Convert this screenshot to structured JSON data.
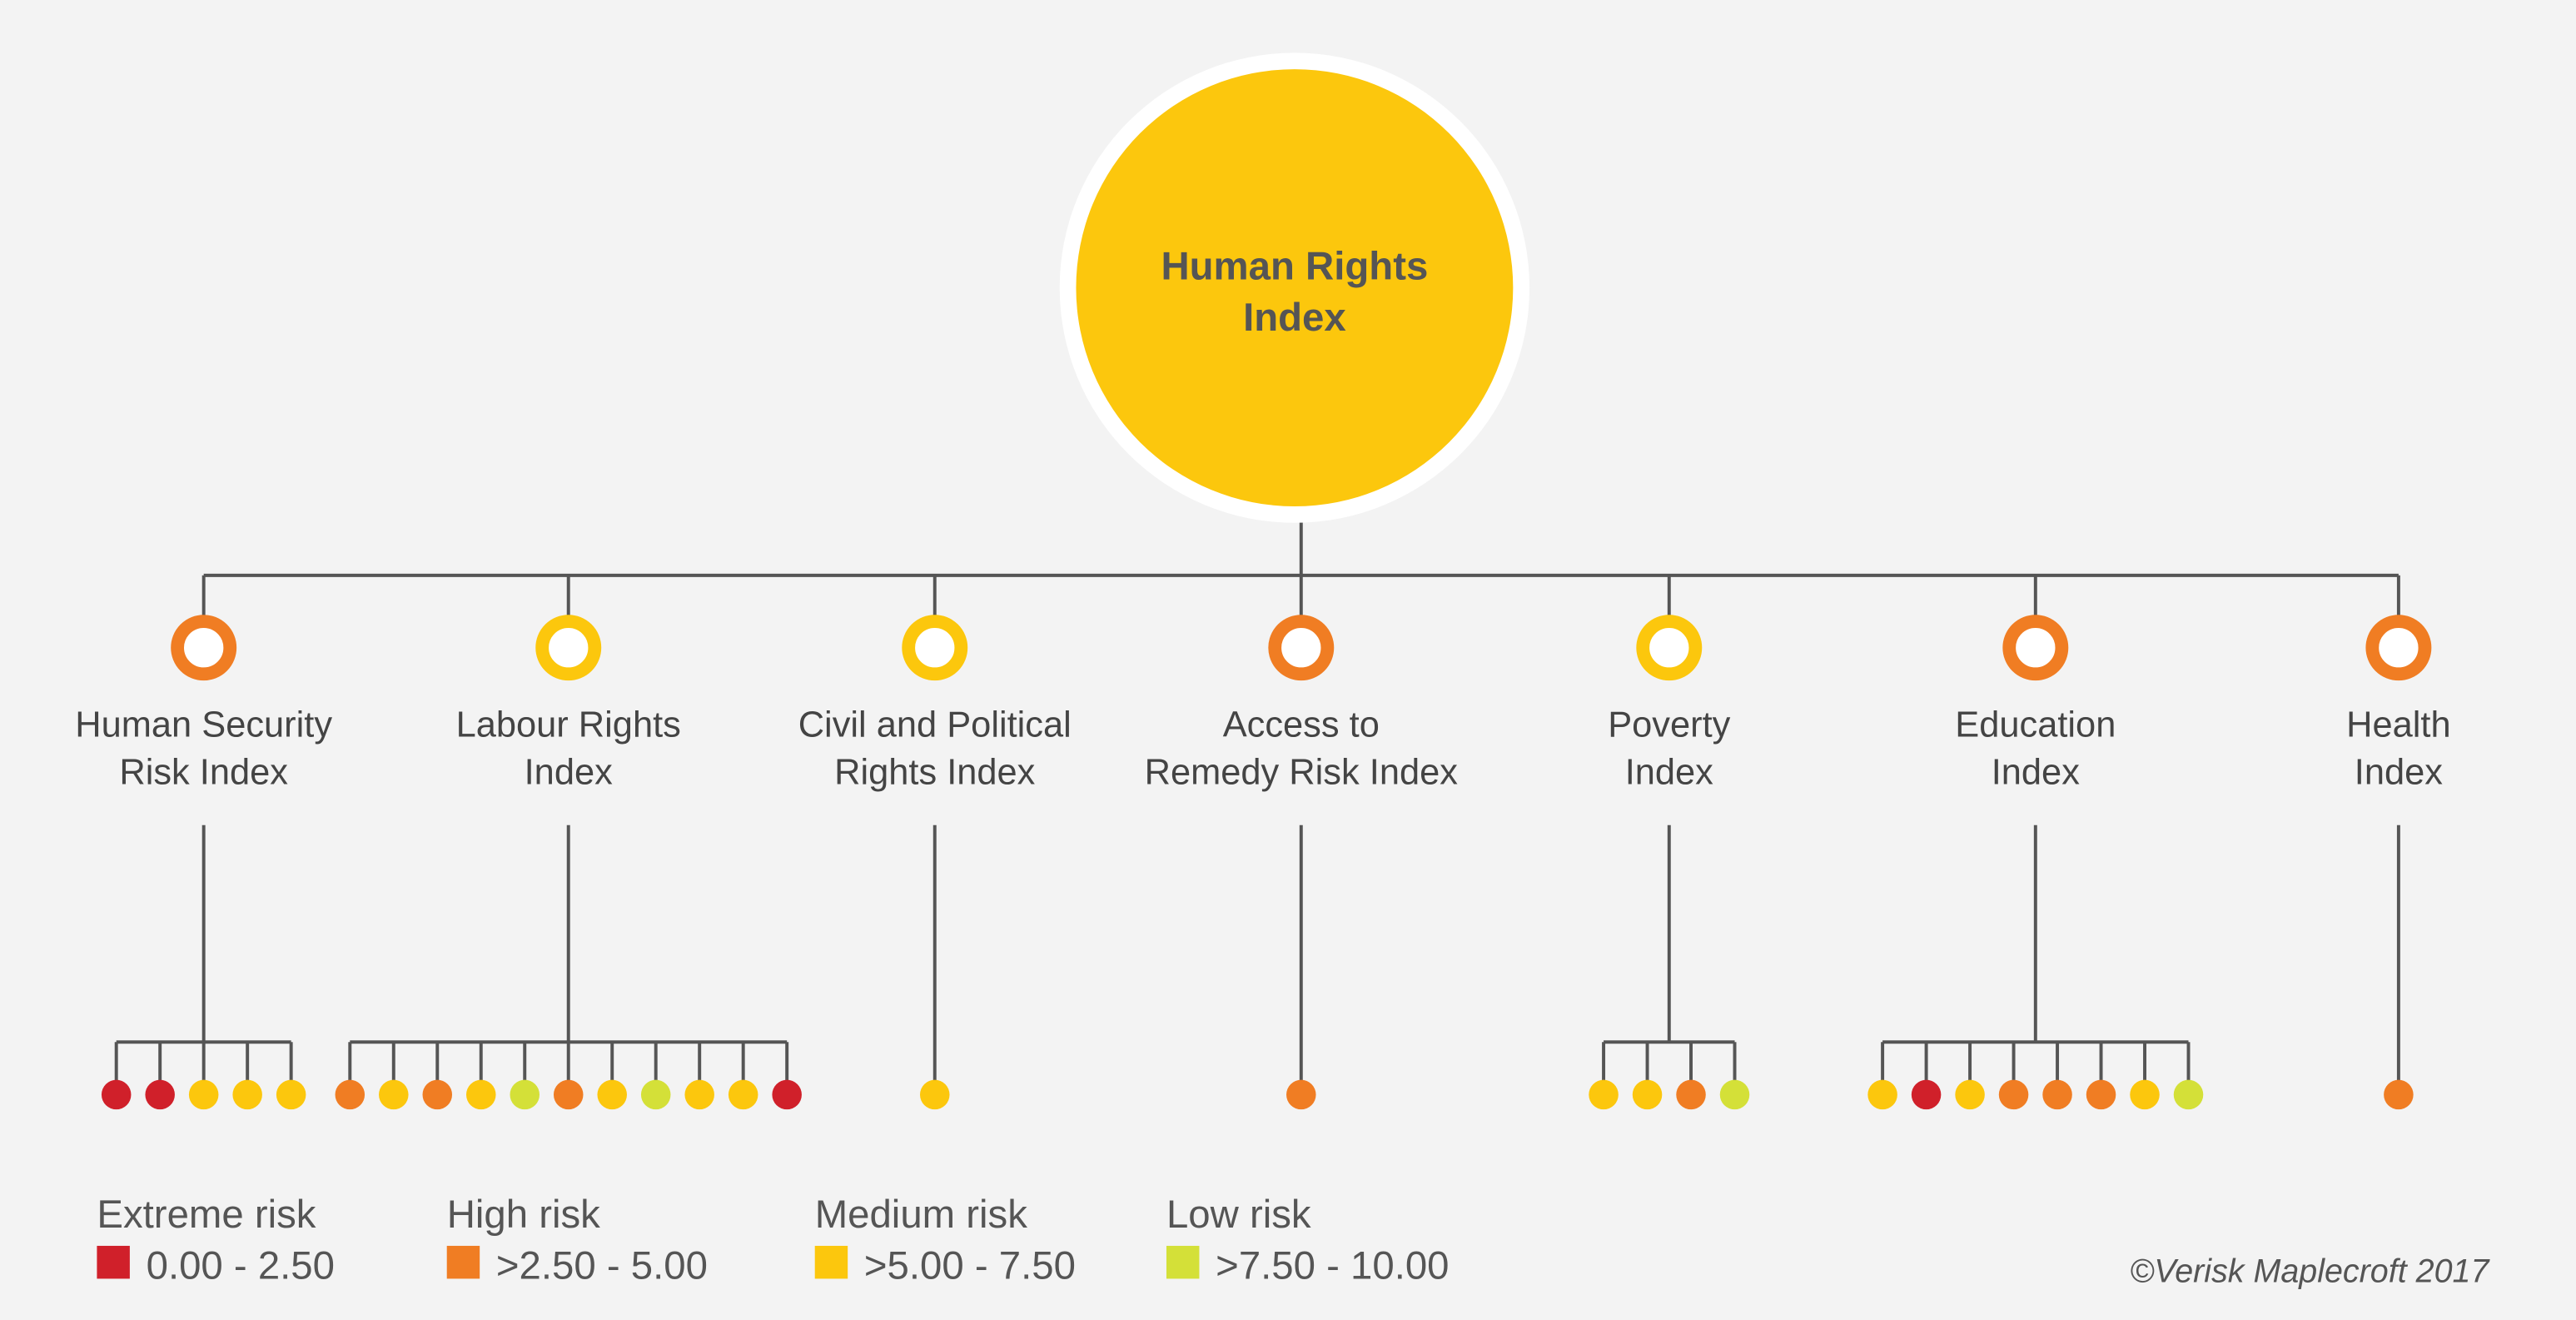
{
  "root": {
    "title_lines": [
      "Human Rights",
      "Index"
    ],
    "color": "#fcc70d"
  },
  "children": [
    {
      "label_lines": [
        "Human Security",
        "Risk Index"
      ],
      "color": "#f07d23",
      "indicators": [
        "#d0202a",
        "#d0202a",
        "#fcc70d",
        "#fcc70d",
        "#fcc70d"
      ]
    },
    {
      "label_lines": [
        "Labour Rights",
        "Index"
      ],
      "color": "#fcc70d",
      "indicators": [
        "#f07d23",
        "#fcc70d",
        "#f07d23",
        "#fcc70d",
        "#d4e038",
        "#f07d23",
        "#fcc70d",
        "#d4e038",
        "#fcc70d",
        "#fcc70d",
        "#d0202a"
      ]
    },
    {
      "label_lines": [
        "Civil and Political",
        "Rights Index"
      ],
      "color": "#fcc70d",
      "indicators": [
        "#fcc70d"
      ]
    },
    {
      "label_lines": [
        "Access to",
        "Remedy Risk Index"
      ],
      "color": "#f07d23",
      "indicators": [
        "#f07d23"
      ]
    },
    {
      "label_lines": [
        "Poverty",
        "Index"
      ],
      "color": "#fcc70d",
      "indicators": [
        "#fcc70d",
        "#fcc70d",
        "#f07d23",
        "#d4e038"
      ]
    },
    {
      "label_lines": [
        "Education",
        "Index"
      ],
      "color": "#f07d23",
      "indicators": [
        "#fcc70d",
        "#d0202a",
        "#fcc70d",
        "#f07d23",
        "#f07d23",
        "#f07d23",
        "#fcc70d",
        "#d4e038"
      ]
    },
    {
      "label_lines": [
        "Health",
        "Index"
      ],
      "color": "#f07d23",
      "indicators": [
        "#f07d23"
      ]
    }
  ],
  "legend": [
    {
      "name": "Extreme risk",
      "range": "0.00 - 2.50",
      "color": "#d0202a"
    },
    {
      "name": "High risk",
      "range": ">2.50 - 5.00",
      "color": "#f07d23"
    },
    {
      "name": "Medium risk",
      "range": ">5.00 - 7.50",
      "color": "#fcc70d"
    },
    {
      "name": "Low risk",
      "range": ">7.50 - 10.00",
      "color": "#d4e038"
    }
  ],
  "copyright": "©Verisk Maplecroft 2017"
}
